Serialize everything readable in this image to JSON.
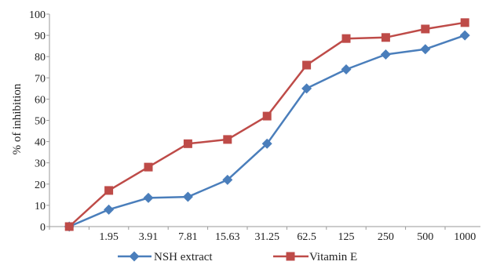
{
  "chart_data": {
    "type": "line",
    "categories": [
      "",
      "1.95",
      "3.91",
      "7.81",
      "15.63",
      "31.25",
      "62.5",
      "125",
      "250",
      "500",
      "1000"
    ],
    "series": [
      {
        "name": "NSH extract",
        "values": [
          0,
          8,
          13.5,
          14,
          22,
          39,
          65,
          74,
          81,
          83.5,
          90
        ],
        "color": "#4a7ebb",
        "marker": "diamond"
      },
      {
        "name": "Vitamin E",
        "values": [
          0,
          17,
          28,
          39,
          41,
          52,
          76,
          88.5,
          89,
          93,
          96
        ],
        "color": "#be4b48",
        "marker": "square"
      }
    ],
    "ylabel": "% of inhibition",
    "ylim": [
      0,
      100
    ],
    "yticks": [
      0,
      10,
      20,
      30,
      40,
      50,
      60,
      70,
      80,
      90,
      100
    ],
    "grid": false,
    "legend": "bottom"
  }
}
